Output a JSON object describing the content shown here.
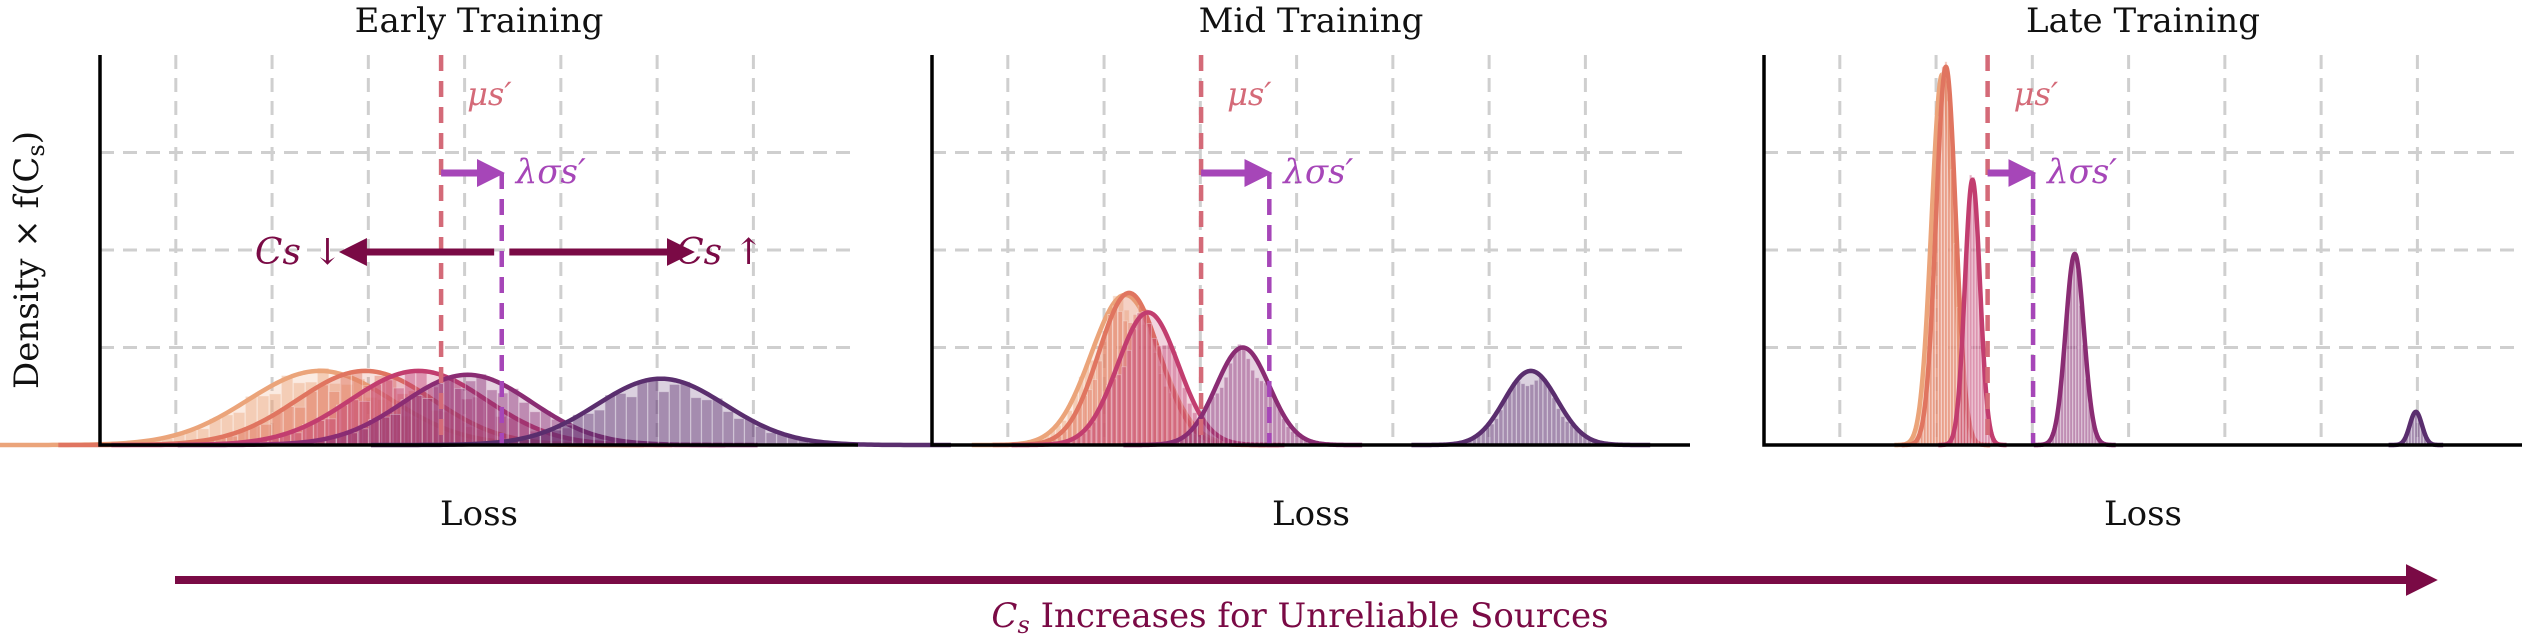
{
  "figure": {
    "ylabel": "Density × f(C",
    "ylabel_sub": "s",
    "ylabel_close": ")",
    "bottom_arrow_label_main": "C",
    "bottom_arrow_label_sub": "s",
    "bottom_arrow_label_rest": " Increases for Unreliable Sources",
    "colors": {
      "bottom_arrow": "#7a0a45",
      "mean_line": "#d46a78",
      "sigma": "#a646b8",
      "cs_arrows": "#7a0a45"
    }
  },
  "chart_data": [
    {
      "type": "area",
      "title": "Early Training",
      "xlabel": "Loss",
      "ylabel": "Density × f(Cs)",
      "xlim": [
        0,
        10
      ],
      "ylim": [
        0,
        1
      ],
      "grid": true,
      "mean_line": {
        "x": 4.5,
        "label": "μs′"
      },
      "sigma_line": {
        "x": 5.3,
        "label": "λσs′"
      },
      "cs_down_label": "Cs ↓",
      "cs_up_label": "Cs ↑",
      "series": [
        {
          "color": "#eba47a",
          "mu": 2.9,
          "sigma": 0.95,
          "peak": 0.19
        },
        {
          "color": "#e07560",
          "mu": 3.5,
          "sigma": 0.9,
          "peak": 0.19
        },
        {
          "color": "#c23d6f",
          "mu": 4.2,
          "sigma": 0.9,
          "peak": 0.19
        },
        {
          "color": "#8a2c73",
          "mu": 4.85,
          "sigma": 0.85,
          "peak": 0.18
        },
        {
          "color": "#5a2e6e",
          "mu": 7.4,
          "sigma": 0.85,
          "peak": 0.17
        }
      ]
    },
    {
      "type": "area",
      "title": "Mid Training",
      "xlabel": "Loss",
      "ylabel": "",
      "xlim": [
        0,
        10
      ],
      "ylim": [
        0,
        1
      ],
      "grid": true,
      "mean_line": {
        "x": 3.55,
        "label": "μs′"
      },
      "sigma_line": {
        "x": 4.45,
        "label": "λσs′"
      },
      "series": [
        {
          "color": "#eba47a",
          "mu": 2.55,
          "sigma": 0.45,
          "peak": 0.385
        },
        {
          "color": "#e07560",
          "mu": 2.6,
          "sigma": 0.4,
          "peak": 0.39
        },
        {
          "color": "#c23d6f",
          "mu": 2.85,
          "sigma": 0.4,
          "peak": 0.34
        },
        {
          "color": "#8a2c73",
          "mu": 4.1,
          "sigma": 0.35,
          "peak": 0.25
        },
        {
          "color": "#5a2e6e",
          "mu": 7.9,
          "sigma": 0.35,
          "peak": 0.19
        }
      ]
    },
    {
      "type": "area",
      "title": "Late Training",
      "xlabel": "Loss",
      "ylabel": "",
      "xlim": [
        0,
        10
      ],
      "ylim": [
        0,
        1
      ],
      "grid": true,
      "mean_line": {
        "x": 2.95,
        "label": "μs′"
      },
      "sigma_line": {
        "x": 3.55,
        "label": "λσs′"
      },
      "series": [
        {
          "color": "#eba47a",
          "mu": 2.35,
          "sigma": 0.14,
          "peak": 0.95
        },
        {
          "color": "#e07560",
          "mu": 2.4,
          "sigma": 0.13,
          "peak": 0.97
        },
        {
          "color": "#c23d6f",
          "mu": 2.75,
          "sigma": 0.1,
          "peak": 0.68
        },
        {
          "color": "#8a2c73",
          "mu": 4.1,
          "sigma": 0.12,
          "peak": 0.49
        },
        {
          "color": "#5a2e6e",
          "mu": 8.6,
          "sigma": 0.08,
          "peak": 0.085
        }
      ]
    }
  ]
}
